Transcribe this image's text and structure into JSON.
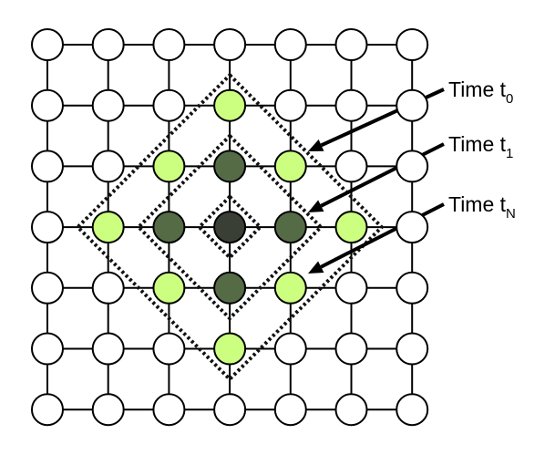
{
  "labels": [
    {
      "main": "Time t",
      "sub": "0"
    },
    {
      "main": "Time t",
      "sub": "1"
    },
    {
      "main": "Time t",
      "sub": "N"
    }
  ],
  "grid": {
    "rows": 7,
    "cols": 7
  },
  "colors": {
    "empty": "#ffffff",
    "ring_light": "#ccff80",
    "ring_mid": "#556b46",
    "center": "#3a3f36",
    "line": "#000000"
  },
  "highlighted_nodes": {
    "center": [
      [
        4,
        4
      ]
    ],
    "mid": [
      [
        3,
        4
      ],
      [
        4,
        3
      ],
      [
        4,
        5
      ],
      [
        5,
        4
      ]
    ],
    "light": [
      [
        2,
        4
      ],
      [
        3,
        3
      ],
      [
        3,
        5
      ],
      [
        4,
        2
      ],
      [
        4,
        6
      ],
      [
        5,
        3
      ],
      [
        5,
        5
      ],
      [
        6,
        4
      ]
    ]
  },
  "dashed_regions": [
    {
      "name": "diamond-t0",
      "center": [
        4,
        4
      ],
      "radius": 0
    },
    {
      "name": "diamond-t1",
      "center": [
        4,
        4
      ],
      "radius": 1
    },
    {
      "name": "diamond-tN",
      "center": [
        4,
        4
      ],
      "radius": 2
    }
  ]
}
